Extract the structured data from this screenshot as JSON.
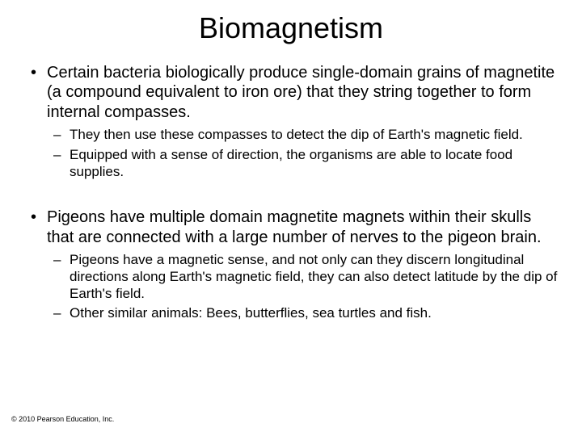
{
  "title": "Biomagnetism",
  "bullets": [
    {
      "text": "Certain bacteria biologically produce single-domain grains of magnetite (a compound equivalent to iron ore) that they string together to form internal compasses.",
      "sub": [
        "They then use these compasses to detect the dip of Earth's magnetic field.",
        "Equipped with a sense of direction, the organisms are able to locate food supplies."
      ]
    },
    {
      "text": "Pigeons have multiple domain magnetite magnets within their skulls that are connected with a large number of nerves to the pigeon brain.",
      "sub": [
        "Pigeons have a magnetic sense, and not only can they discern longitudinal directions along Earth's magnetic field, they can also detect latitude by the dip of Earth's field.",
        "Other similar animals: Bees, butterflies, sea turtles and fish."
      ]
    }
  ],
  "copyright": "© 2010 Pearson Education, Inc.",
  "style": {
    "background_color": "#ffffff",
    "text_color": "#000000",
    "title_fontsize": 36,
    "main_bullet_fontsize": 20,
    "sub_bullet_fontsize": 17,
    "copyright_fontsize": 9,
    "font_family": "Arial"
  }
}
